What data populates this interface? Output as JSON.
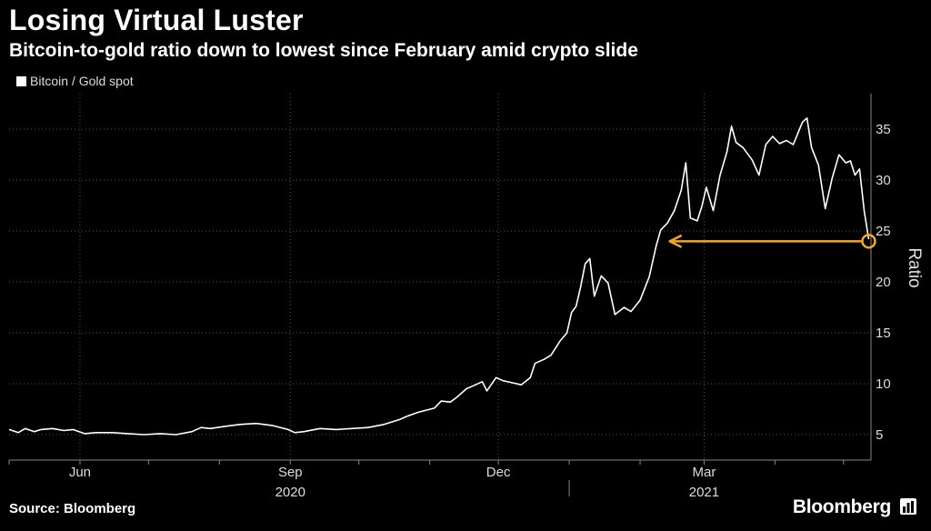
{
  "header": {
    "title": "Losing Virtual Luster",
    "subtitle": "Bitcoin-to-gold ratio down to lowest since February amid crypto slide"
  },
  "footer": {
    "source": "Source: Bloomberg",
    "brand": "Bloomberg"
  },
  "colors": {
    "background": "#000000",
    "line": "#ffffff",
    "annotation": "#f5a623",
    "grid": "#555555"
  },
  "chart_data": {
    "type": "line",
    "title": "Losing Virtual Luster",
    "subtitle": "Bitcoin-to-gold ratio down to lowest since February amid crypto slide",
    "ylabel": "Ratio",
    "xlabel": "",
    "ylim": [
      2.5,
      38.5
    ],
    "xlim": [
      "2020-05-01",
      "2021-05-13"
    ],
    "yticks": [
      5,
      10,
      15,
      20,
      25,
      30,
      35
    ],
    "xticks": [
      {
        "label": "Jun",
        "date": "2020-06-01"
      },
      {
        "label": "Sep",
        "date": "2020-09-01"
      },
      {
        "label": "Dec",
        "date": "2020-12-01"
      },
      {
        "label": "Mar",
        "date": "2021-03-01"
      }
    ],
    "year_labels": [
      {
        "label": "2020",
        "date": "2020-09-01"
      },
      {
        "label": "2021",
        "date": "2021-03-01"
      }
    ],
    "legend": {
      "position": "top-left",
      "entries": [
        "Bitcoin / Gold spot"
      ]
    },
    "grid": true,
    "series": [
      {
        "name": "Bitcoin / Gold spot",
        "points": [
          [
            "2020-05-01",
            5.5
          ],
          [
            "2020-05-05",
            5.2
          ],
          [
            "2020-05-08",
            5.6
          ],
          [
            "2020-05-12",
            5.3
          ],
          [
            "2020-05-15",
            5.5
          ],
          [
            "2020-05-20",
            5.6
          ],
          [
            "2020-05-25",
            5.4
          ],
          [
            "2020-05-29",
            5.5
          ],
          [
            "2020-06-03",
            5.1
          ],
          [
            "2020-06-08",
            5.2
          ],
          [
            "2020-06-15",
            5.2
          ],
          [
            "2020-06-22",
            5.1
          ],
          [
            "2020-06-29",
            5.0
          ],
          [
            "2020-07-06",
            5.1
          ],
          [
            "2020-07-13",
            5.0
          ],
          [
            "2020-07-20",
            5.3
          ],
          [
            "2020-07-24",
            5.7
          ],
          [
            "2020-07-28",
            5.6
          ],
          [
            "2020-08-03",
            5.8
          ],
          [
            "2020-08-10",
            6.0
          ],
          [
            "2020-08-17",
            6.1
          ],
          [
            "2020-08-24",
            5.9
          ],
          [
            "2020-08-31",
            5.5
          ],
          [
            "2020-09-03",
            5.2
          ],
          [
            "2020-09-07",
            5.3
          ],
          [
            "2020-09-14",
            5.6
          ],
          [
            "2020-09-21",
            5.5
          ],
          [
            "2020-09-28",
            5.6
          ],
          [
            "2020-10-05",
            5.7
          ],
          [
            "2020-10-12",
            6.0
          ],
          [
            "2020-10-19",
            6.5
          ],
          [
            "2020-10-22",
            6.8
          ],
          [
            "2020-10-27",
            7.2
          ],
          [
            "2020-11-03",
            7.6
          ],
          [
            "2020-11-06",
            8.3
          ],
          [
            "2020-11-10",
            8.2
          ],
          [
            "2020-11-13",
            8.7
          ],
          [
            "2020-11-17",
            9.5
          ],
          [
            "2020-11-20",
            9.8
          ],
          [
            "2020-11-24",
            10.2
          ],
          [
            "2020-11-26",
            9.3
          ],
          [
            "2020-11-30",
            10.6
          ],
          [
            "2020-12-03",
            10.3
          ],
          [
            "2020-12-07",
            10.1
          ],
          [
            "2020-12-11",
            9.9
          ],
          [
            "2020-12-15",
            10.6
          ],
          [
            "2020-12-17",
            12.0
          ],
          [
            "2020-12-21",
            12.4
          ],
          [
            "2020-12-24",
            12.8
          ],
          [
            "2020-12-28",
            14.2
          ],
          [
            "2020-12-31",
            15.0
          ],
          [
            "2021-01-02",
            17.0
          ],
          [
            "2021-01-04",
            17.6
          ],
          [
            "2021-01-06",
            19.5
          ],
          [
            "2021-01-08",
            21.8
          ],
          [
            "2021-01-10",
            22.3
          ],
          [
            "2021-01-12",
            18.6
          ],
          [
            "2021-01-15",
            20.6
          ],
          [
            "2021-01-18",
            19.9
          ],
          [
            "2021-01-21",
            16.8
          ],
          [
            "2021-01-25",
            17.5
          ],
          [
            "2021-01-28",
            17.1
          ],
          [
            "2021-02-01",
            18.2
          ],
          [
            "2021-02-05",
            20.5
          ],
          [
            "2021-02-08",
            23.5
          ],
          [
            "2021-02-10",
            25.1
          ],
          [
            "2021-02-13",
            25.8
          ],
          [
            "2021-02-16",
            27.0
          ],
          [
            "2021-02-19",
            29.0
          ],
          [
            "2021-02-21",
            31.7
          ],
          [
            "2021-02-23",
            26.3
          ],
          [
            "2021-02-26",
            26.0
          ],
          [
            "2021-02-28",
            27.4
          ],
          [
            "2021-03-02",
            29.3
          ],
          [
            "2021-03-05",
            27.0
          ],
          [
            "2021-03-08",
            30.5
          ],
          [
            "2021-03-11",
            32.8
          ],
          [
            "2021-03-13",
            35.3
          ],
          [
            "2021-03-15",
            33.7
          ],
          [
            "2021-03-18",
            33.2
          ],
          [
            "2021-03-22",
            32.0
          ],
          [
            "2021-03-25",
            30.5
          ],
          [
            "2021-03-28",
            33.5
          ],
          [
            "2021-03-31",
            34.3
          ],
          [
            "2021-04-03",
            33.6
          ],
          [
            "2021-04-06",
            33.9
          ],
          [
            "2021-04-09",
            33.5
          ],
          [
            "2021-04-13",
            35.7
          ],
          [
            "2021-04-15",
            36.1
          ],
          [
            "2021-04-17",
            33.2
          ],
          [
            "2021-04-20",
            31.5
          ],
          [
            "2021-04-23",
            27.2
          ],
          [
            "2021-04-26",
            30.2
          ],
          [
            "2021-04-29",
            32.5
          ],
          [
            "2021-05-02",
            31.7
          ],
          [
            "2021-05-04",
            31.9
          ],
          [
            "2021-05-06",
            30.5
          ],
          [
            "2021-05-08",
            31.1
          ],
          [
            "2021-05-10",
            27.0
          ],
          [
            "2021-05-12",
            24.2
          ]
        ]
      }
    ],
    "annotations": [
      {
        "type": "arrow",
        "from": [
          "2021-05-12",
          24.0
        ],
        "to": [
          "2021-02-14",
          24.0
        ],
        "color": "#f5a623"
      },
      {
        "type": "circle",
        "at": [
          "2021-05-12",
          24.0
        ],
        "color": "#f5a623"
      }
    ]
  }
}
